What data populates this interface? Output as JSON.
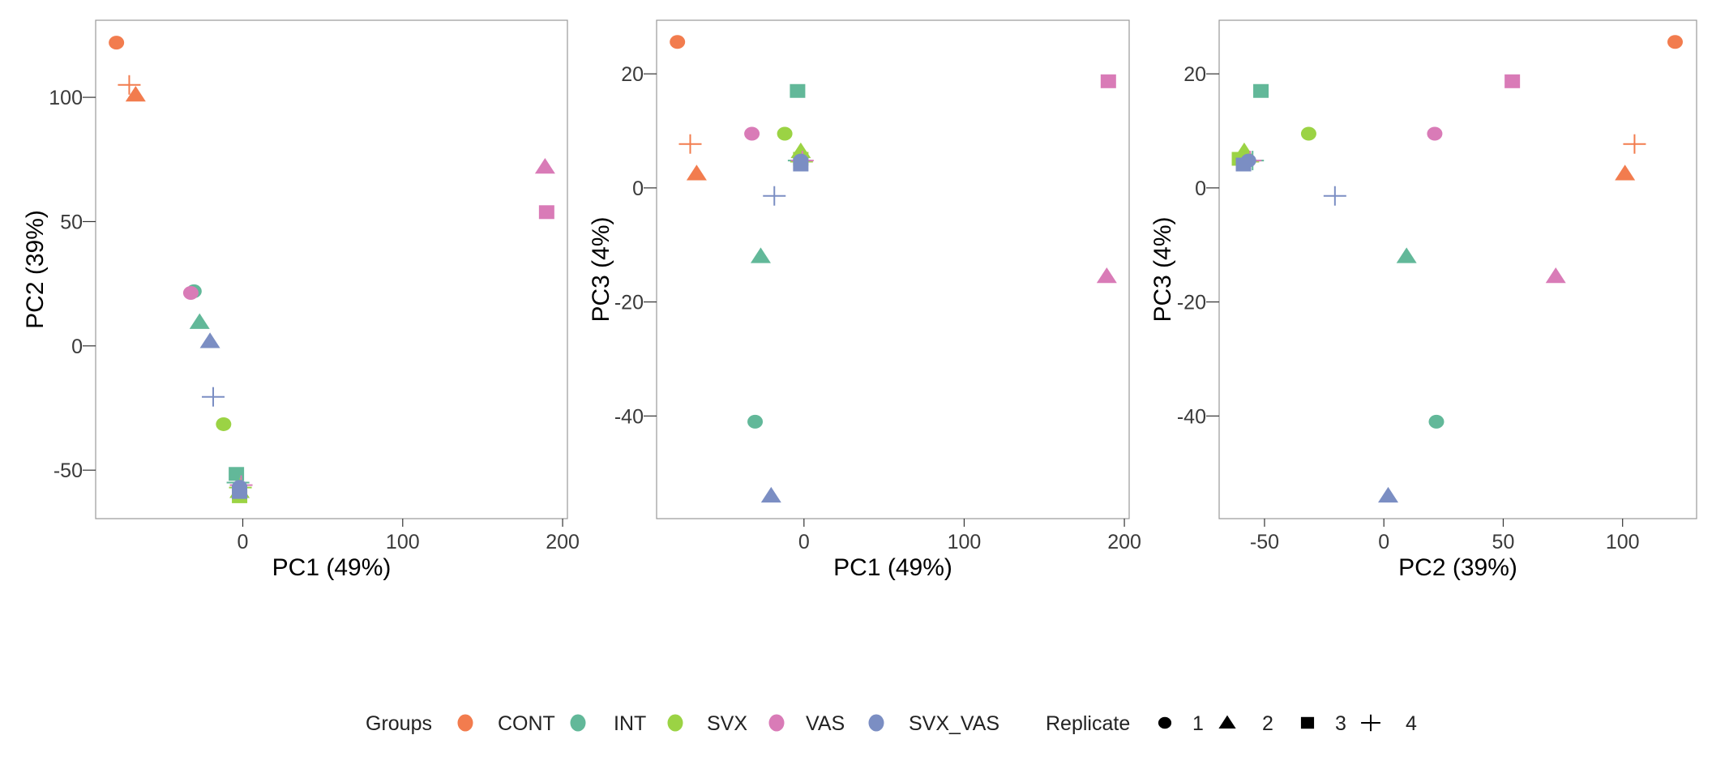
{
  "chart_data": {
    "type": "scatter",
    "groups": [
      {
        "name": "CONT",
        "color": "#f27c4e"
      },
      {
        "name": "INT",
        "color": "#62b899"
      },
      {
        "name": "SVX",
        "color": "#9bd344"
      },
      {
        "name": "VAS",
        "color": "#d97bb7"
      },
      {
        "name": "SVX_VAS",
        "color": "#7b8ec3"
      }
    ],
    "replicates": [
      {
        "name": "1",
        "shape": "circle"
      },
      {
        "name": "2",
        "shape": "triangle"
      },
      {
        "name": "3",
        "shape": "square"
      },
      {
        "name": "4",
        "shape": "plus"
      }
    ],
    "samples": [
      {
        "group": "CONT",
        "replicate": "1",
        "PC1": -79,
        "PC2": 122,
        "PC3": 25.6
      },
      {
        "group": "CONT",
        "replicate": "2",
        "PC1": -67,
        "PC2": 101,
        "PC3": 2.5
      },
      {
        "group": "CONT",
        "replicate": "4",
        "PC1": -71,
        "PC2": 105,
        "PC3": 7.7
      },
      {
        "group": "INT",
        "replicate": "1",
        "PC1": -30.5,
        "PC2": 22,
        "PC3": -41
      },
      {
        "group": "INT",
        "replicate": "2",
        "PC1": -27,
        "PC2": 9.5,
        "PC3": -12
      },
      {
        "group": "INT",
        "replicate": "3",
        "PC1": -4,
        "PC2": -51.5,
        "PC3": 17
      },
      {
        "group": "INT",
        "replicate": "4",
        "PC1": -3,
        "PC2": -55,
        "PC3": 4.8
      },
      {
        "group": "SVX",
        "replicate": "1",
        "PC1": -12,
        "PC2": -31.5,
        "PC3": 9.5
      },
      {
        "group": "SVX",
        "replicate": "2",
        "PC1": -2,
        "PC2": -58.5,
        "PC3": 6.4
      },
      {
        "group": "SVX",
        "replicate": "3",
        "PC1": -2,
        "PC2": -60.5,
        "PC3": 5.1
      },
      {
        "group": "SVX",
        "replicate": "4",
        "PC1": -1.5,
        "PC2": -57,
        "PC3": 4.6
      },
      {
        "group": "VAS",
        "replicate": "1",
        "PC1": -32.5,
        "PC2": 21.3,
        "PC3": 9.5
      },
      {
        "group": "VAS",
        "replicate": "2",
        "PC1": 189,
        "PC2": 72,
        "PC3": -15.5
      },
      {
        "group": "VAS",
        "replicate": "3",
        "PC1": 190,
        "PC2": 53.8,
        "PC3": 18.7
      },
      {
        "group": "VAS",
        "replicate": "4",
        "PC1": -1,
        "PC2": -56,
        "PC3": 4.8
      },
      {
        "group": "SVX_VAS",
        "replicate": "1",
        "PC1": -2,
        "PC2": -56.7,
        "PC3": 4.8
      },
      {
        "group": "SVX_VAS",
        "replicate": "2",
        "PC1": -20.5,
        "PC2": 1.8,
        "PC3": -54
      },
      {
        "group": "SVX_VAS",
        "replicate": "3",
        "PC1": -2,
        "PC2": -58.8,
        "PC3": 4.1
      },
      {
        "group": "SVX_VAS",
        "replicate": "4",
        "PC1": -18.5,
        "PC2": -20.5,
        "PC3": -1.4
      }
    ],
    "panels": [
      {
        "x": "PC1",
        "y": "PC2",
        "xlabel": "PC1 (49%)",
        "ylabel": "PC2 (39%)",
        "xlim": [
          -92,
          203
        ],
        "ylim": [
          -69.5,
          131
        ],
        "xticks": [
          0,
          100,
          200
        ],
        "yticks": [
          -50,
          0,
          50,
          100
        ]
      },
      {
        "x": "PC1",
        "y": "PC3",
        "xlabel": "PC1 (49%)",
        "ylabel": "PC3 (4%)",
        "xlim": [
          -92,
          203
        ],
        "ylim": [
          -58,
          29.4
        ],
        "xticks": [
          0,
          100,
          200
        ],
        "yticks": [
          -40,
          -20,
          0,
          20
        ]
      },
      {
        "x": "PC2",
        "y": "PC3",
        "xlabel": "PC2 (39%)",
        "ylabel": "PC3 (4%)",
        "xlim": [
          -69,
          131
        ],
        "ylim": [
          -58,
          29.4
        ],
        "xticks": [
          -50,
          0,
          50,
          100
        ],
        "yticks": [
          -40,
          -20,
          0,
          20
        ]
      }
    ],
    "grid": false,
    "legend": {
      "position": "bottom",
      "groups_title": "Groups",
      "replicates_title": "Replicate"
    }
  }
}
